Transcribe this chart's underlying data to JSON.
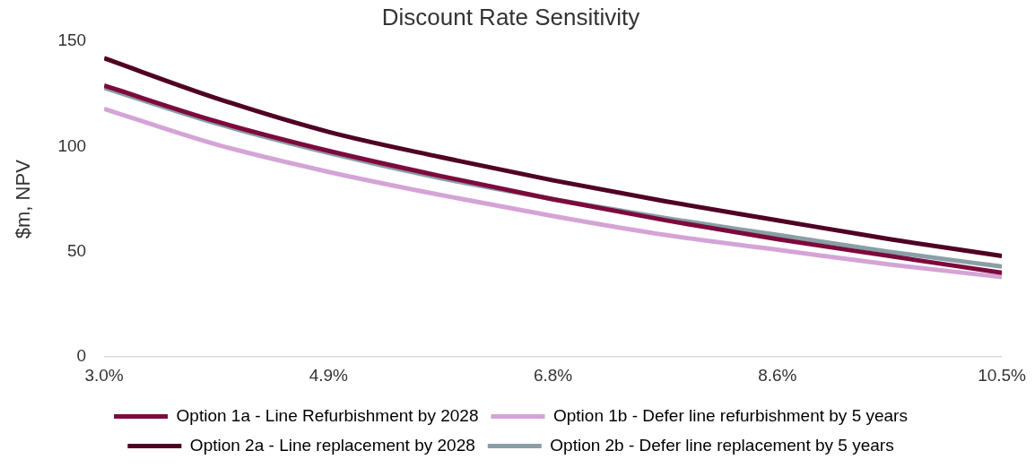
{
  "chart_data": {
    "type": "line",
    "title": "Discount Rate Sensitivity",
    "ylabel": "$m, NPV",
    "x": [
      3.0,
      3.9375,
      4.875,
      5.8125,
      6.75,
      7.6875,
      8.625,
      9.5625,
      10.5
    ],
    "series": [
      {
        "name": "Option 1a - Line Refurbishment by 2028",
        "color": "#7d0a3c",
        "values": [
          129,
          112,
          98,
          86,
          75,
          65,
          56,
          48,
          40
        ]
      },
      {
        "name": "Option 1b - Defer line refurbishment by 5 years",
        "color": "#d4a4d6",
        "values": [
          118,
          101,
          88,
          77,
          67,
          58,
          51,
          44,
          38
        ]
      },
      {
        "name": "Option 2a - Line replacement by 2028",
        "color": "#4f0024",
        "values": [
          142,
          123,
          107,
          95,
          84,
          74,
          65,
          56,
          48
        ]
      },
      {
        "name": "Option 2b - Defer line replacement by 5 years",
        "color": "#8a9ea6",
        "values": [
          128,
          111,
          97,
          85,
          75,
          66,
          58,
          50,
          43
        ]
      }
    ],
    "xlim": [
      3.0,
      10.5
    ],
    "xticks": [
      {
        "value": 3.0,
        "label": "3.0%"
      },
      {
        "value": 4.875,
        "label": "4.9%"
      },
      {
        "value": 6.75,
        "label": "6.8%"
      },
      {
        "value": 8.625,
        "label": "8.6%"
      },
      {
        "value": 10.5,
        "label": "10.5%"
      }
    ],
    "ylim": [
      0,
      150
    ],
    "yticks": [
      0,
      50,
      100,
      150
    ],
    "grid": false,
    "legend": "bottom",
    "marker": "none",
    "line_style": "solid"
  }
}
